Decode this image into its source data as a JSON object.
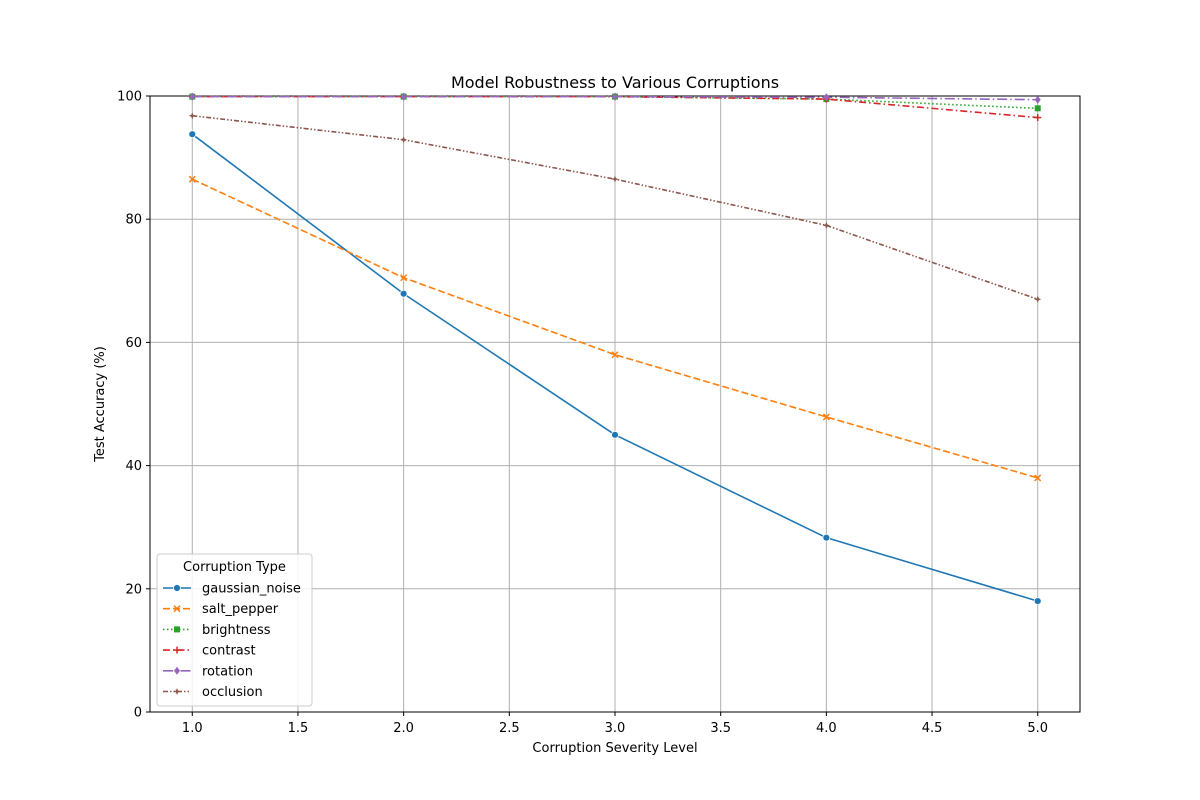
{
  "chart_data": {
    "type": "line",
    "title": "Model Robustness to Various Corruptions",
    "xlabel": "Corruption Severity Level",
    "ylabel": "Test Accuracy (%)",
    "xlim": [
      0.8,
      5.2
    ],
    "ylim": [
      0,
      100
    ],
    "xticks": [
      "1.0",
      "1.5",
      "2.0",
      "2.5",
      "3.0",
      "3.5",
      "4.0",
      "4.5",
      "5.0"
    ],
    "yticks": [
      "0",
      "20",
      "40",
      "60",
      "80",
      "100"
    ],
    "grid": true,
    "legend": {
      "title": "Corruption Type",
      "placement": "lower-left"
    },
    "x": [
      1,
      2,
      3,
      4,
      5
    ],
    "series": [
      {
        "name": "gaussian_noise",
        "values": [
          93.8,
          67.9,
          45.0,
          28.3,
          18.0
        ],
        "color": "#1f77b4",
        "dash": "solid",
        "marker": "circle"
      },
      {
        "name": "salt_pepper",
        "values": [
          86.5,
          70.5,
          58.0,
          47.9,
          38.0
        ],
        "color": "#ff7f0e",
        "dash": "dashed",
        "marker": "x"
      },
      {
        "name": "brightness",
        "values": [
          99.9,
          99.9,
          99.9,
          99.5,
          98.0
        ],
        "color": "#2ca02c",
        "dash": "dotted",
        "marker": "square"
      },
      {
        "name": "contrast",
        "values": [
          99.9,
          99.9,
          99.9,
          99.5,
          96.5
        ],
        "color": "#d62728",
        "dash": "dashdot",
        "marker": "plus"
      },
      {
        "name": "rotation",
        "values": [
          99.9,
          99.9,
          99.9,
          99.8,
          99.4
        ],
        "color": "#9467bd",
        "dash": "longdashdot",
        "marker": "diamond"
      },
      {
        "name": "occlusion",
        "values": [
          96.8,
          92.9,
          86.5,
          79.0,
          67.0
        ],
        "color": "#8c564b",
        "dash": "dashdotdot",
        "marker": "star"
      }
    ]
  }
}
